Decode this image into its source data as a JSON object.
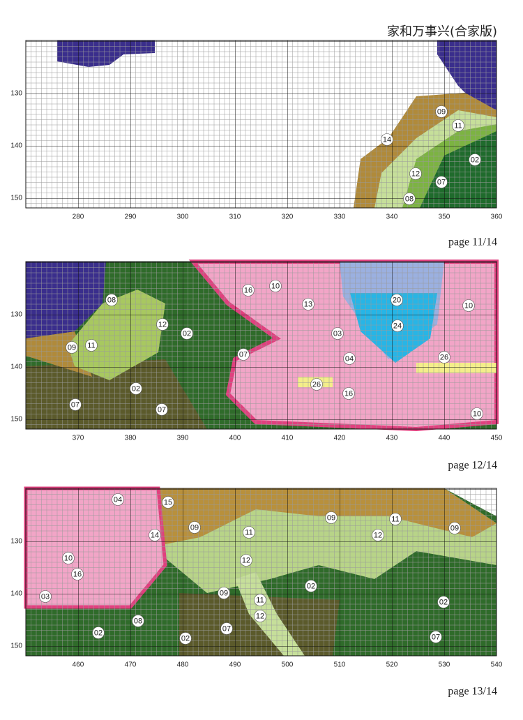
{
  "header": {
    "title": "家和万事兴(合家版)"
  },
  "panels": [
    {
      "page": "page 11/14",
      "x_ticks": [
        "280",
        "290",
        "300",
        "310",
        "320",
        "330",
        "340",
        "350",
        "360"
      ],
      "y_ticks": [
        "130",
        "140",
        "150"
      ],
      "symbols": [
        "09",
        "11",
        "14",
        "02",
        "12",
        "07",
        "08"
      ]
    },
    {
      "page": "page 12/14",
      "x_ticks": [
        "370",
        "380",
        "390",
        "400",
        "410",
        "420",
        "430",
        "440",
        "450"
      ],
      "y_ticks": [
        "130",
        "140",
        "150"
      ],
      "symbols": [
        "08",
        "10",
        "16",
        "13",
        "20",
        "10",
        "12",
        "02",
        "24",
        "03",
        "09",
        "11",
        "07",
        "04",
        "26",
        "26",
        "02",
        "16",
        "07",
        "07",
        "10"
      ]
    },
    {
      "page": "page 13/14",
      "x_ticks": [
        "460",
        "470",
        "480",
        "490",
        "500",
        "510",
        "520",
        "530",
        "540"
      ],
      "y_ticks": [
        "130",
        "140",
        "150"
      ],
      "symbols": [
        "04",
        "15",
        "09",
        "11",
        "09",
        "11",
        "12",
        "09",
        "14",
        "10",
        "16",
        "12",
        "02",
        "09",
        "03",
        "11",
        "02",
        "08",
        "12",
        "02",
        "07",
        "02",
        "07"
      ]
    }
  ]
}
